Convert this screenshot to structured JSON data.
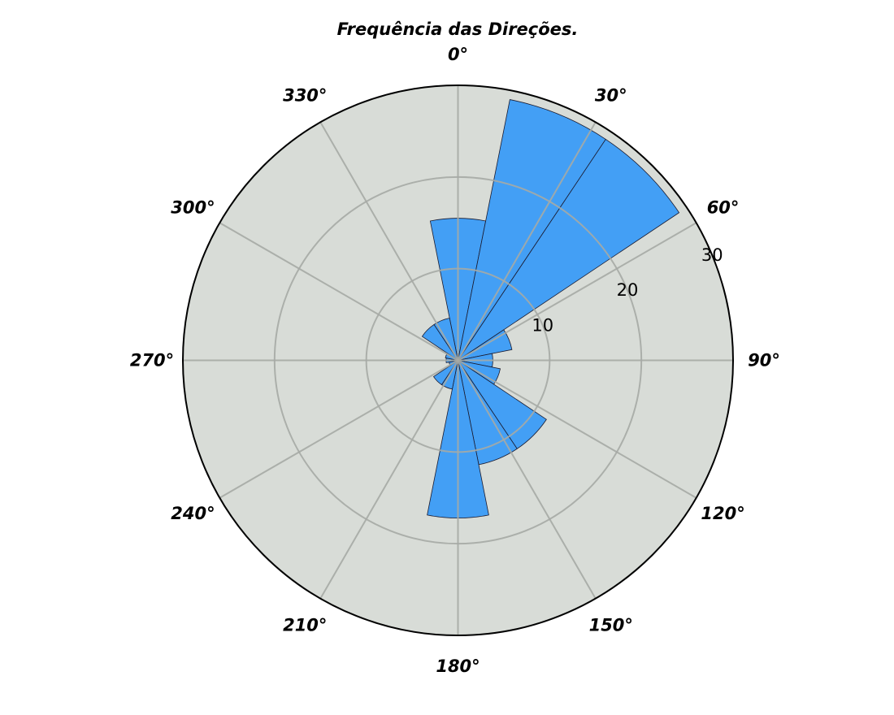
{
  "chart_data": {
    "type": "polar-bar",
    "title": "Frequência das Direções.",
    "theta_zero": "N",
    "theta_direction": "clockwise",
    "theta_ticks": [
      0,
      30,
      60,
      90,
      120,
      150,
      180,
      210,
      240,
      270,
      300,
      330
    ],
    "theta_tick_labels": [
      "0°",
      "30°",
      "60°",
      "90°",
      "120°",
      "150°",
      "180°",
      "210°",
      "240°",
      "270°",
      "300°",
      "330°"
    ],
    "r_ticks": [
      10,
      20,
      30
    ],
    "r_tick_labels": [
      "10",
      "20",
      "30"
    ],
    "rlim": [
      0,
      30
    ],
    "r_label_angle": 67.5,
    "grid": true,
    "bars": [
      {
        "center": 0,
        "width": 22.5,
        "value": 15.5
      },
      {
        "center": 22.5,
        "width": 22.5,
        "value": 29.0
      },
      {
        "center": 45,
        "width": 22.5,
        "value": 29.0
      },
      {
        "center": 67.5,
        "width": 22.5,
        "value": 6.0
      },
      {
        "center": 90,
        "width": 22.5,
        "value": 3.8
      },
      {
        "center": 112.5,
        "width": 22.5,
        "value": 4.7
      },
      {
        "center": 135,
        "width": 22.5,
        "value": 11.6
      },
      {
        "center": 157.5,
        "width": 22.5,
        "value": 11.6
      },
      {
        "center": 180,
        "width": 22.5,
        "value": 17.2
      },
      {
        "center": 202.5,
        "width": 22.5,
        "value": 3.2
      },
      {
        "center": 225,
        "width": 22.5,
        "value": 3.2
      },
      {
        "center": 247.5,
        "width": 22.5,
        "value": 1.0
      },
      {
        "center": 270,
        "width": 22.5,
        "value": 1.3
      },
      {
        "center": 292.5,
        "width": 22.5,
        "value": 1.4
      },
      {
        "center": 315,
        "width": 22.5,
        "value": 4.7
      },
      {
        "center": 337.5,
        "width": 22.5,
        "value": 4.7
      }
    ],
    "colors": {
      "bar_fill": "#439ff5",
      "bar_edge": "#1a1a2e",
      "plot_background": "#d8dcd7",
      "grid": "#a6aaa5",
      "frame": "#000000"
    }
  }
}
